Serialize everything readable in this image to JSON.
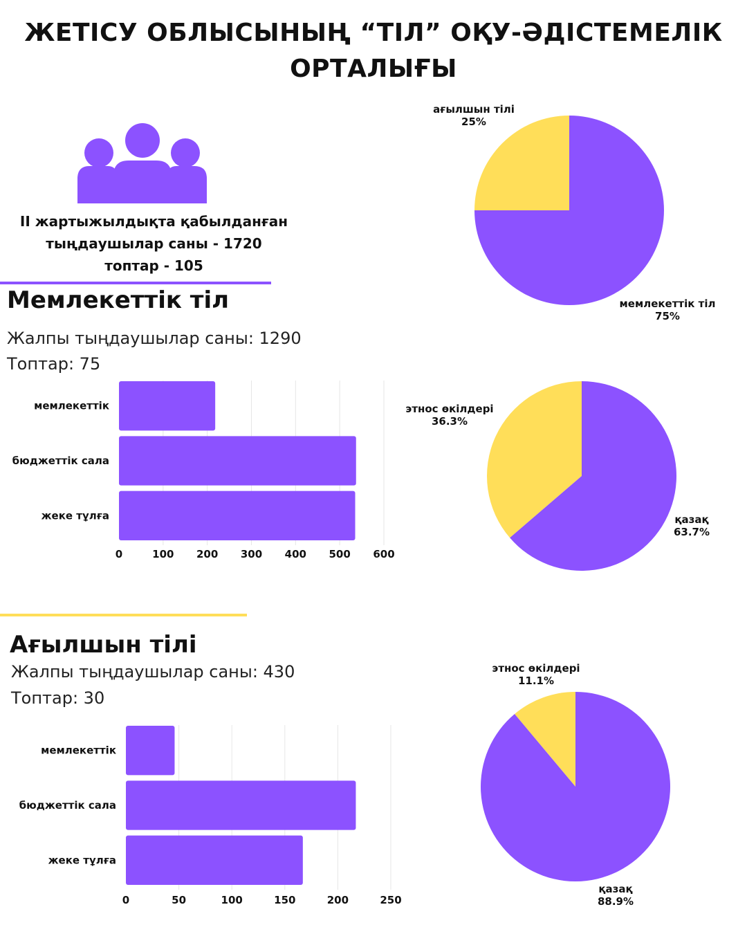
{
  "title": {
    "line1": "ЖЕТІСУ ОБЛЫСЫНЫҢ “ТІЛ” ОҚУ-ӘДІСТЕМЕЛІК",
    "line2": "ОРТАЛЫҒЫ"
  },
  "summary": {
    "line1": "ІІ жартыжылдықта қабылданған",
    "line2": "тыңдаушылар саны - 1720",
    "line3": "топтар - 105"
  },
  "colors": {
    "purple": "#8c52ff",
    "yellow": "#ffde59",
    "purple_line": "#8c52ff",
    "yellow_line": "#ffde59"
  },
  "icons": {
    "people": "people-group-icon"
  },
  "section1": {
    "title": "Мемлекеттік тіл",
    "total": "Жалпы тыңдаушылар саны: 1290",
    "groups": "Топтар: 75"
  },
  "section2": {
    "title": "Ағылшын тілі",
    "total": "Жалпы тыңдаушылар саны: 430",
    "groups": "Топтар: 30"
  },
  "chart_data": [
    {
      "type": "pie",
      "labels": [
        "ағылшын тілі",
        "мемлекеттік тіл"
      ],
      "values": [
        25,
        75
      ],
      "value_labels": [
        "25%",
        "75%"
      ],
      "colors": [
        "#ffde59",
        "#8c52ff"
      ]
    },
    {
      "type": "bar",
      "orientation": "horizontal",
      "categories": [
        "мемлекеттік",
        "бюджеттік сала",
        "жеке тұлға"
      ],
      "values": [
        218,
        537,
        535
      ],
      "xlim": [
        0,
        600
      ],
      "xticks": [
        0,
        100,
        200,
        300,
        400,
        500,
        600
      ],
      "grid": true,
      "color": "#8c52ff"
    },
    {
      "type": "pie",
      "labels": [
        "этнос өкілдері",
        "қазақ"
      ],
      "values": [
        36.3,
        63.7
      ],
      "value_labels": [
        "36.3%",
        "63.7%"
      ],
      "colors": [
        "#ffde59",
        "#8c52ff"
      ]
    },
    {
      "type": "bar",
      "orientation": "horizontal",
      "categories": [
        "мемлекеттік",
        "бюджеттік сала",
        "жеке тұлға"
      ],
      "values": [
        46,
        217,
        167
      ],
      "xlim": [
        0,
        250
      ],
      "xticks": [
        0,
        50,
        100,
        150,
        200,
        250
      ],
      "grid": true,
      "color": "#8c52ff"
    },
    {
      "type": "pie",
      "labels": [
        "этнос өкілдері",
        "қазақ"
      ],
      "values": [
        11.1,
        88.9
      ],
      "value_labels": [
        "11.1%",
        "88.9%"
      ],
      "colors": [
        "#ffde59",
        "#8c52ff"
      ]
    }
  ]
}
